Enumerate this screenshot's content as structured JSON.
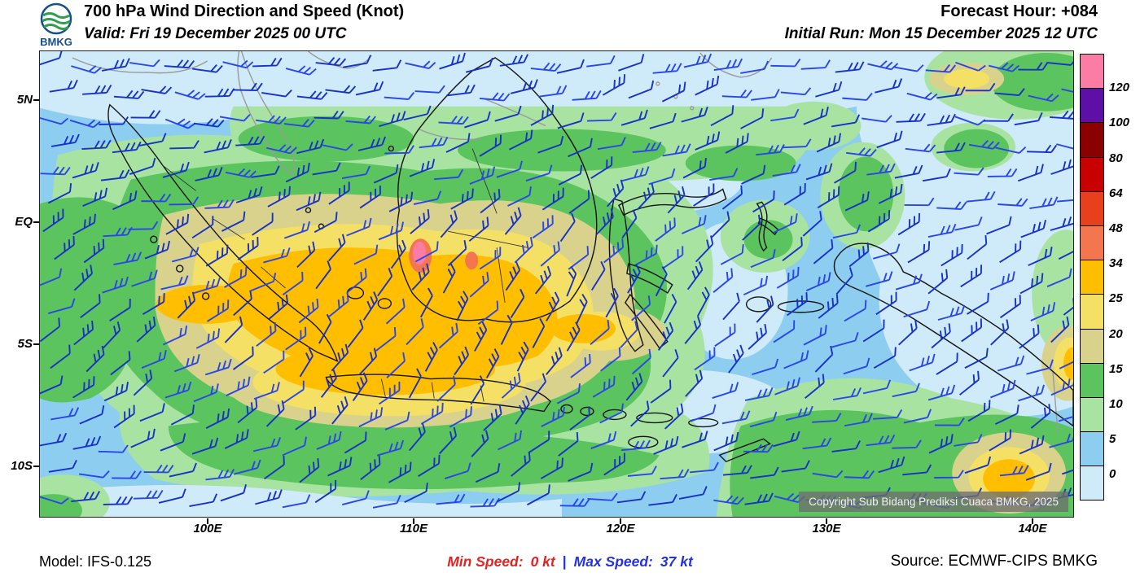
{
  "header": {
    "logo_text": "BMKG",
    "title": "700 hPa Wind Direction and Speed (Knot)",
    "valid": "Valid: Fri 19 December 2025 00 UTC",
    "forecast_hour": "Forecast Hour: +084",
    "initial_run": "Initial Run: Mon 15 December 2025 12 UTC"
  },
  "map": {
    "copyright": "Copyright Sub Bidang Prediksi Cuaca BMKG, 2025",
    "x_ticks": [
      "100E",
      "110E",
      "120E",
      "130E",
      "140E"
    ],
    "y_ticks": [
      "5N",
      "EQ",
      "5S",
      "10S"
    ]
  },
  "legend": {
    "labels": [
      "120",
      "100",
      "80",
      "64",
      "48",
      "34",
      "25",
      "20",
      "15",
      "10",
      "5",
      "0"
    ],
    "colors": [
      "#fb7da6",
      "#5e0fa8",
      "#8b0000",
      "#c80000",
      "#e8401c",
      "#f4764e",
      "#ffbe00",
      "#f4e065",
      "#d9d28c",
      "#5cc45e",
      "#a9e3a2",
      "#8ccdf0",
      "#cfeaf8"
    ]
  },
  "footer": {
    "model": "Model: IFS-0.125",
    "min_speed_label": "Min Speed:",
    "min_speed_value": "0 kt",
    "separator": "|",
    "max_speed_label": "Max Speed:",
    "max_speed_value": "37 kt",
    "source": "Source: ECMWF-CIPS BMKG"
  },
  "chart_data": {
    "type": "heatmap",
    "title": "700 hPa Wind Direction and Speed (Knot)",
    "valid_time": "Fri 19 December 2025 00 UTC",
    "initial_run": "Mon 15 December 2025 12 UTC",
    "forecast_hour": "+084",
    "x_ticks": [
      "100E",
      "110E",
      "120E",
      "130E",
      "140E"
    ],
    "y_ticks": [
      "5N",
      "EQ",
      "5S",
      "10S"
    ],
    "legend_boundaries_knot": [
      0,
      5,
      10,
      15,
      20,
      25,
      34,
      48,
      64,
      80,
      100,
      120
    ],
    "min_speed_kt": 0,
    "max_speed_kt": 37,
    "model": "IFS-0.125",
    "source": "ECMWF-CIPS BMKG"
  }
}
